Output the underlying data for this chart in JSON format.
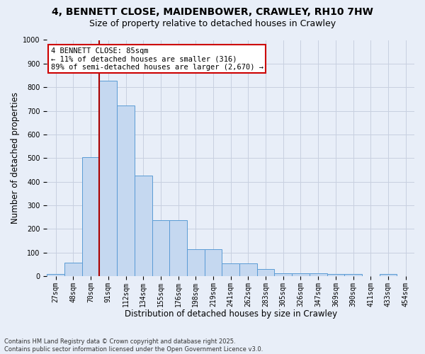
{
  "title": "4, BENNETT CLOSE, MAIDENBOWER, CRAWLEY, RH10 7HW",
  "subtitle": "Size of property relative to detached houses in Crawley",
  "xlabel": "Distribution of detached houses by size in Crawley",
  "ylabel": "Number of detached properties",
  "footer": "Contains HM Land Registry data © Crown copyright and database right 2025.\nContains public sector information licensed under the Open Government Licence v3.0.",
  "bin_labels": [
    "27sqm",
    "48sqm",
    "70sqm",
    "91sqm",
    "112sqm",
    "134sqm",
    "155sqm",
    "176sqm",
    "198sqm",
    "219sqm",
    "241sqm",
    "262sqm",
    "283sqm",
    "305sqm",
    "326sqm",
    "347sqm",
    "369sqm",
    "390sqm",
    "411sqm",
    "433sqm",
    "454sqm"
  ],
  "bar_heights": [
    8,
    57,
    505,
    827,
    722,
    425,
    238,
    238,
    115,
    115,
    55,
    55,
    30,
    13,
    13,
    13,
    10,
    8,
    0,
    8,
    0
  ],
  "bar_color": "#c5d8f0",
  "bar_edge_color": "#5a9bd5",
  "annotation_text": "4 BENNETT CLOSE: 85sqm\n← 11% of detached houses are smaller (316)\n89% of semi-detached houses are larger (2,670) →",
  "annotation_box_color": "#ffffff",
  "annotation_box_edge_color": "#cc0000",
  "vline_color": "#aa0000",
  "vline_x": 2.5,
  "ylim": [
    0,
    1000
  ],
  "yticks": [
    0,
    100,
    200,
    300,
    400,
    500,
    600,
    700,
    800,
    900,
    1000
  ],
  "grid_color": "#c8d0e0",
  "bg_color": "#e8eef8",
  "title_fontsize": 10,
  "subtitle_fontsize": 9,
  "axis_label_fontsize": 8.5,
  "tick_fontsize": 7,
  "annotation_fontsize": 7.5,
  "footer_fontsize": 6
}
